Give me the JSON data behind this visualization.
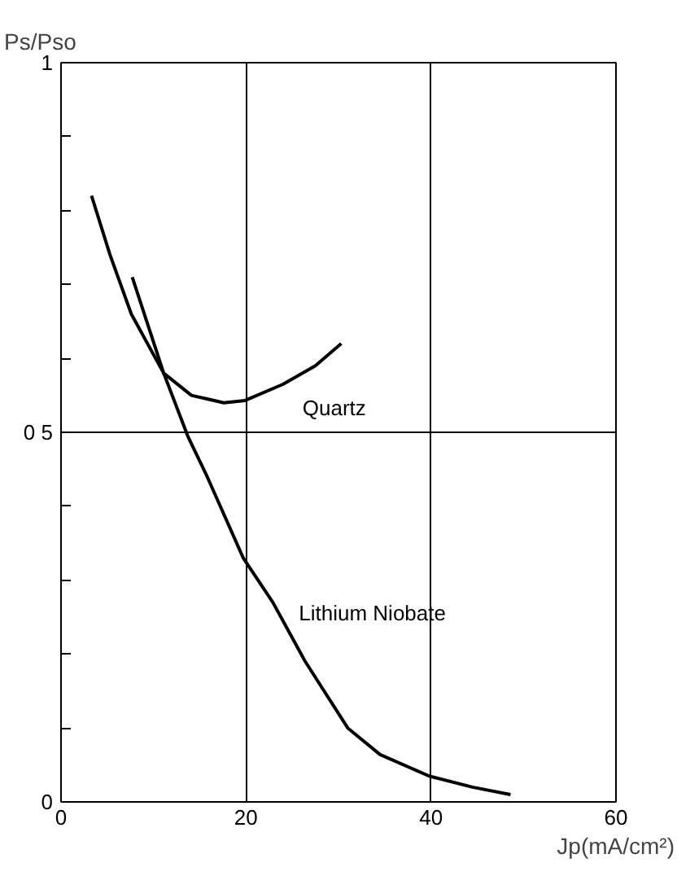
{
  "chart_data": {
    "type": "line",
    "xlabel": "Jp(mA/cm²)",
    "ylabel": "Ps/Pso",
    "xlim": [
      0,
      60
    ],
    "ylim": [
      0,
      1
    ],
    "xticks": [
      0,
      20,
      40,
      60
    ],
    "yticks": [
      0,
      {
        "value": 0.1,
        "label": null
      },
      {
        "value": 0.2,
        "label": null
      },
      {
        "value": 0.3,
        "label": null
      },
      {
        "value": 0.4,
        "label": null
      },
      {
        "value": 0.5,
        "label": "0 5"
      },
      {
        "value": 0.6,
        "label": null
      },
      {
        "value": 0.7,
        "label": null
      },
      {
        "value": 0.8,
        "label": null
      },
      {
        "value": 0.9,
        "label": null
      },
      1
    ],
    "grid": true,
    "legend": false,
    "marker": "none",
    "line_style": "solid",
    "series": [
      {
        "name": "Quartz",
        "color": "#000000",
        "x": [
          3.3,
          5.3,
          7.6,
          11.1,
          14.1,
          17.6,
          19.9,
          24,
          27.5,
          30.3
        ],
        "values": [
          0.82,
          0.74,
          0.66,
          0.58,
          0.55,
          0.54,
          0.543,
          0.565,
          0.59,
          0.62
        ]
      },
      {
        "name": "Lithium  Niobate",
        "color": "#000000",
        "x": [
          7.7,
          11.1,
          13.7,
          15.8,
          19.7,
          22.9,
          26.4,
          31,
          34.5,
          39.8,
          44.5,
          48.6
        ],
        "values": [
          0.71,
          0.58,
          0.495,
          0.44,
          0.33,
          0.27,
          0.19,
          0.1,
          0.064,
          0.035,
          0.02,
          0.01
        ]
      }
    ]
  }
}
